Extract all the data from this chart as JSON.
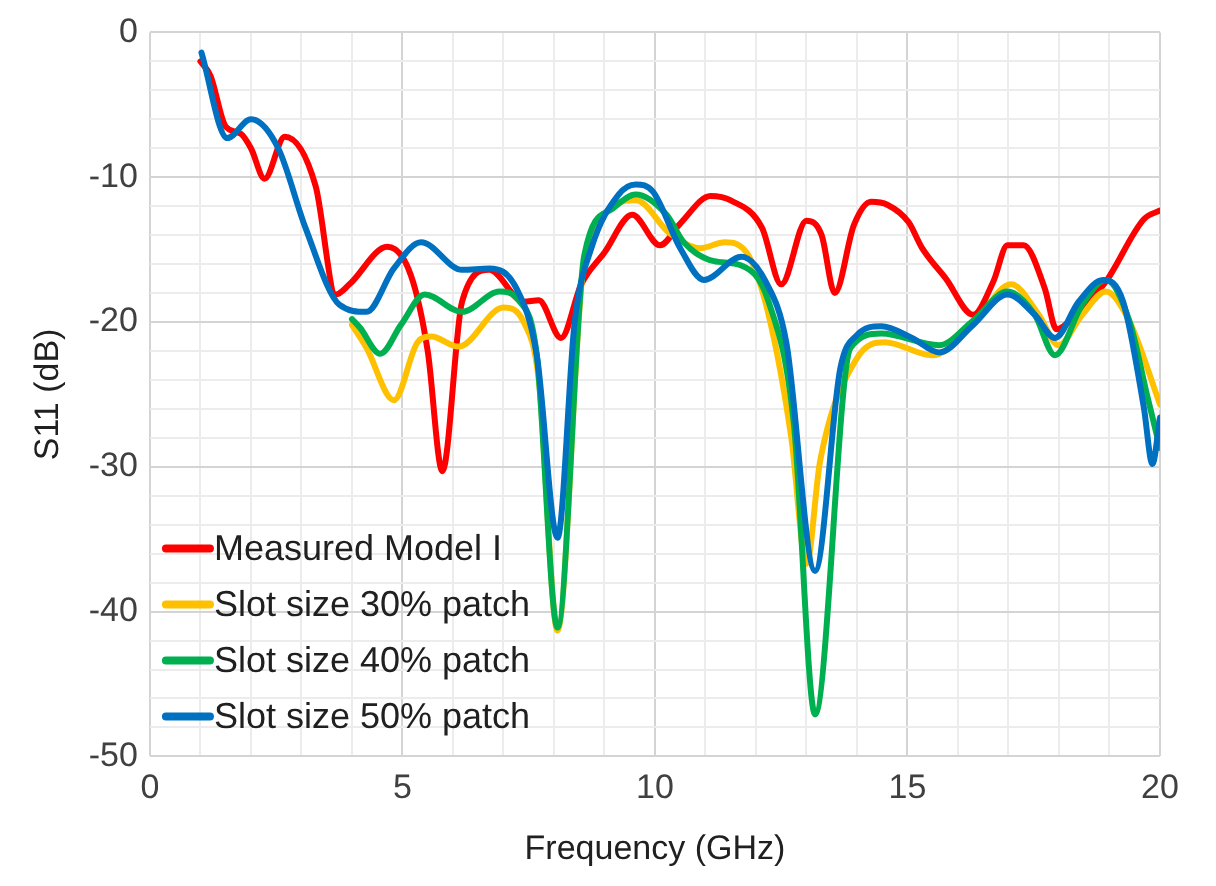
{
  "chart_data": {
    "type": "line",
    "xlabel": "Frequency (GHz)",
    "ylabel": "S11 (dB)",
    "xlim": [
      0,
      20
    ],
    "ylim": [
      -50,
      0
    ],
    "xticks": [
      0,
      {
        "value": 1,
        "label": null
      },
      {
        "value": 2,
        "label": null
      },
      {
        "value": 3,
        "label": null
      },
      {
        "value": 4,
        "label": null
      },
      5,
      {
        "value": 6,
        "label": null
      },
      {
        "value": 7,
        "label": null
      },
      {
        "value": 8,
        "label": null
      },
      {
        "value": 9,
        "label": null
      },
      10,
      {
        "value": 11,
        "label": null
      },
      {
        "value": 12,
        "label": null
      },
      {
        "value": 13,
        "label": null
      },
      {
        "value": 14,
        "label": null
      },
      15,
      {
        "value": 16,
        "label": null
      },
      {
        "value": 17,
        "label": null
      },
      {
        "value": 18,
        "label": null
      },
      {
        "value": 19,
        "label": null
      },
      20
    ],
    "yticks": [
      -50,
      {
        "value": -48,
        "label": null
      },
      {
        "value": -46,
        "label": null
      },
      {
        "value": -44,
        "label": null
      },
      {
        "value": -42,
        "label": null
      },
      -40,
      {
        "value": -38,
        "label": null
      },
      {
        "value": -36,
        "label": null
      },
      {
        "value": -34,
        "label": null
      },
      {
        "value": -32,
        "label": null
      },
      -30,
      {
        "value": -28,
        "label": null
      },
      {
        "value": -26,
        "label": null
      },
      {
        "value": -24,
        "label": null
      },
      {
        "value": -22,
        "label": null
      },
      -20,
      {
        "value": -18,
        "label": null
      },
      {
        "value": -16,
        "label": null
      },
      {
        "value": -14,
        "label": null
      },
      {
        "value": -12,
        "label": null
      },
      -10,
      {
        "value": -8,
        "label": null
      },
      {
        "value": -6,
        "label": null
      },
      {
        "value": -4,
        "label": null
      },
      {
        "value": -2,
        "label": null
      },
      0
    ],
    "grid": true,
    "legend": "bottom left",
    "marker": "none",
    "line_style": "solid",
    "series": [
      {
        "name": "Measured Model I",
        "color": "#ff0000",
        "x": [
          1,
          1.2,
          1.5,
          1.8,
          2.0,
          2.27,
          2.67,
          3.28,
          3.68,
          3.95,
          4.7,
          5.17,
          5.5,
          5.79,
          6.18,
          6.72,
          7.4,
          7.7,
          8.14,
          8.54,
          9.0,
          9.55,
          10.1,
          10.5,
          11.1,
          11.5,
          12.12,
          12.5,
          13.0,
          13.3,
          13.56,
          13.94,
          14.28,
          14.6,
          15.02,
          15.29,
          15.76,
          16.3,
          16.7,
          16.98,
          17.3,
          17.72,
          17.95,
          18.33,
          18.93,
          19.68,
          20
        ],
        "values": [
          -2,
          -3,
          -6.5,
          -7,
          -8,
          -10.1,
          -7.2,
          -10.6,
          -18.1,
          -17.4,
          -14.8,
          -16.8,
          -22,
          -30.3,
          -18.6,
          -16.4,
          -18.6,
          -18.5,
          -21.1,
          -17.4,
          -15.2,
          -12.6,
          -14.7,
          -13.2,
          -11.3,
          -11.6,
          -13.5,
          -17.4,
          -13,
          -14,
          -18,
          -13.3,
          -11.7,
          -11.9,
          -13.1,
          -14.9,
          -17,
          -19.5,
          -17.2,
          -14.7,
          -14.7,
          -17.7,
          -20.5,
          -19.5,
          -17.2,
          -12.9,
          -12.3
        ]
      },
      {
        "name": "Slot size 30% patch",
        "color": "#ffc000",
        "x": [
          4.0,
          4.29,
          4.83,
          5.3,
          5.57,
          6.11,
          7.0,
          7.4,
          7.7,
          8.07,
          8.6,
          9.62,
          10.3,
          10.9,
          11.38,
          11.85,
          12.25,
          12.7,
          13.0,
          13.27,
          14.0,
          14.55,
          15.49,
          16.3,
          17.05,
          17.6,
          17.99,
          18.46,
          18.93,
          19.4,
          20
        ],
        "values": [
          -20.2,
          -21.8,
          -25.4,
          -21.4,
          -21,
          -21.7,
          -19,
          -20,
          -24,
          -41.3,
          -15.9,
          -11.6,
          -13.9,
          -14.9,
          -14.5,
          -15.4,
          -19.5,
          -28,
          -36.7,
          -29.6,
          -22.5,
          -21.4,
          -22.3,
          -20.2,
          -17.4,
          -19.5,
          -21.6,
          -19.5,
          -17.9,
          -20,
          -25.7
        ]
      },
      {
        "name": "Slot size 40% patch",
        "color": "#00b050",
        "x": [
          4.0,
          4.16,
          4.56,
          4.97,
          5.44,
          6.18,
          6.92,
          7.3,
          7.66,
          8.07,
          8.6,
          9.15,
          9.62,
          10.23,
          10.57,
          11.17,
          11.71,
          12.25,
          12.75,
          13.17,
          13.87,
          14.48,
          15.63,
          16.3,
          16.98,
          17.52,
          17.92,
          18.46,
          18.93,
          19.4,
          19.74,
          20
        ],
        "values": [
          -19.8,
          -20.4,
          -22.2,
          -20.2,
          -18.1,
          -19.3,
          -17.9,
          -18.5,
          -22.3,
          -41.1,
          -15.4,
          -12.2,
          -11.2,
          -12.6,
          -14.5,
          -15.8,
          -16.1,
          -18.6,
          -27,
          -47.1,
          -21.8,
          -20.8,
          -21.6,
          -19.9,
          -17.9,
          -19.5,
          -22.3,
          -18.8,
          -17.1,
          -20,
          -25,
          -28.7
        ]
      },
      {
        "name": "Slot size 50% patch",
        "color": "#0070c0",
        "x": [
          1.02,
          1.53,
          2.0,
          2.54,
          3.08,
          3.75,
          4.29,
          4.83,
          5.37,
          6.18,
          6.72,
          7.26,
          7.66,
          8.07,
          8.41,
          8.74,
          9.28,
          9.62,
          9.96,
          10.5,
          10.97,
          11.71,
          12.19,
          12.6,
          13.17,
          13.67,
          14.0,
          14.48,
          15.09,
          15.63,
          16.3,
          16.98,
          17.52,
          17.92,
          18.39,
          18.87,
          19.27,
          19.68,
          19.85,
          20
        ],
        "values": [
          -1.4,
          -7.3,
          -6,
          -8,
          -13.5,
          -18.8,
          -19.3,
          -16.3,
          -14.5,
          -16.4,
          -16.3,
          -17.7,
          -22.3,
          -34.9,
          -20,
          -14.9,
          -11.2,
          -10.5,
          -11,
          -14.9,
          -17.1,
          -15.5,
          -17.2,
          -21.4,
          -37.2,
          -23.2,
          -20.9,
          -20.3,
          -21.1,
          -22.1,
          -20.2,
          -18.1,
          -19.5,
          -21.1,
          -18.6,
          -17.1,
          -18.6,
          -25.9,
          -29.8,
          -26.6
        ]
      }
    ]
  }
}
